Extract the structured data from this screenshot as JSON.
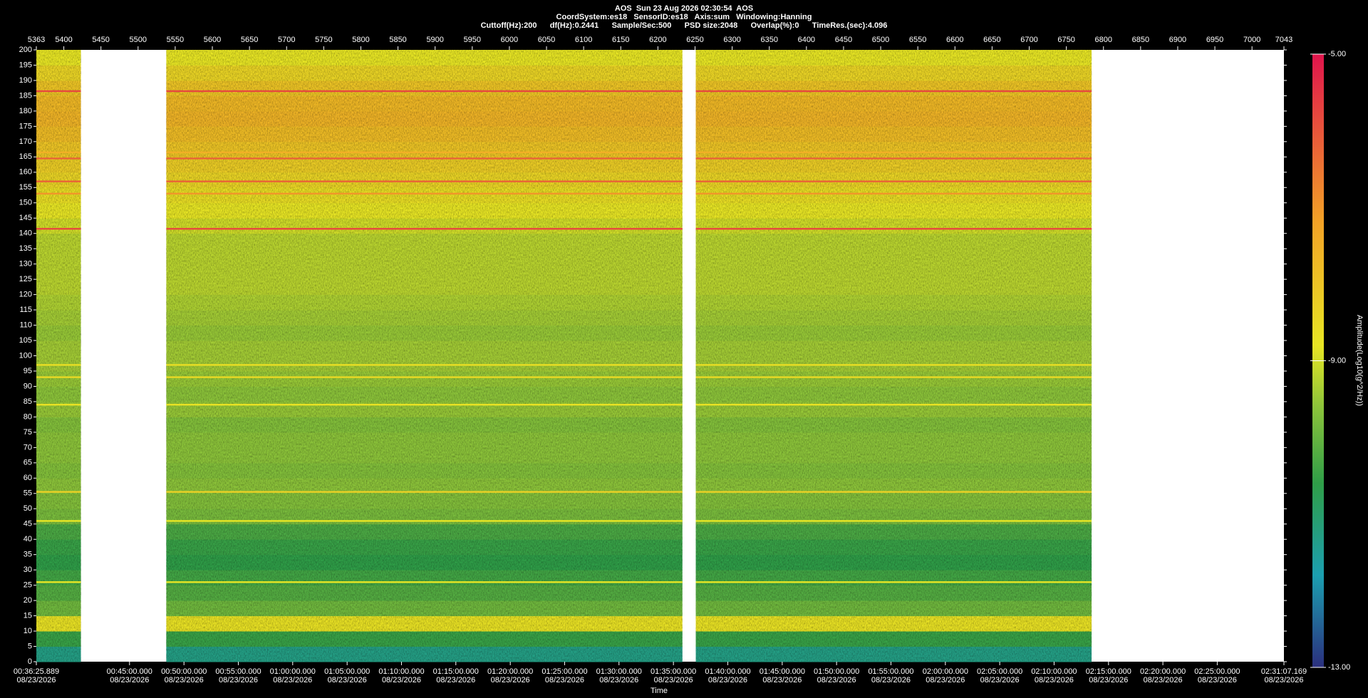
{
  "chart_data": {
    "type": "heatmap",
    "title_lines": [
      "AOS  Sun 23 Aug 2026 02:30:54  AOS",
      "CoordSystem:es18   SensorID:es18   Axis:sum   Windowing:Hanning",
      "Cuttoff(Hz):200      df(Hz):0.2441      Sample/Sec:500      PSD size:2048      Overlap(%):0      TimeRes.(sec):4.096"
    ],
    "xlabel": "Time",
    "colorbar_label": "Amplitude(Log10(g^2/Hz))",
    "xlim": [
      5363,
      7043
    ],
    "xticks": [
      5363,
      5400,
      5450,
      5500,
      5550,
      5600,
      5650,
      5700,
      5750,
      5800,
      5850,
      5900,
      5950,
      6000,
      6050,
      6100,
      6150,
      6200,
      6250,
      6300,
      6350,
      6400,
      6450,
      6500,
      6550,
      6600,
      6650,
      6700,
      6750,
      6800,
      6850,
      6900,
      6950,
      7000,
      7043
    ],
    "x2ticks": [
      {
        "value": 5363,
        "label": "00:36:25.889",
        "date": "08/23/2026"
      },
      {
        "value": 5488.5,
        "label": "00:45:00.000",
        "date": "08/23/2026"
      },
      {
        "value": 5561.8,
        "label": "00:50:00.000",
        "date": "08/23/2026"
      },
      {
        "value": 5635.0,
        "label": "00:55:00.000",
        "date": "08/23/2026"
      },
      {
        "value": 5708.2,
        "label": "01:00:00.000",
        "date": "08/23/2026"
      },
      {
        "value": 5781.5,
        "label": "01:05:00.000",
        "date": "08/23/2026"
      },
      {
        "value": 5854.7,
        "label": "01:10:00.000",
        "date": "08/23/2026"
      },
      {
        "value": 5927.9,
        "label": "01:15:00.000",
        "date": "08/23/2026"
      },
      {
        "value": 6001.2,
        "label": "01:20:00.000",
        "date": "08/23/2026"
      },
      {
        "value": 6074.4,
        "label": "01:25:00.000",
        "date": "08/23/2026"
      },
      {
        "value": 6147.6,
        "label": "01:30:00.000",
        "date": "08/23/2026"
      },
      {
        "value": 6220.9,
        "label": "01:35:00.000",
        "date": "08/23/2026"
      },
      {
        "value": 6294.1,
        "label": "01:40:00.000",
        "date": "08/23/2026"
      },
      {
        "value": 6367.4,
        "label": "01:45:00.000",
        "date": "08/23/2026"
      },
      {
        "value": 6440.6,
        "label": "01:50:00.000",
        "date": "08/23/2026"
      },
      {
        "value": 6513.8,
        "label": "01:55:00.000",
        "date": "08/23/2026"
      },
      {
        "value": 6587.1,
        "label": "02:00:00.000",
        "date": "08/23/2026"
      },
      {
        "value": 6660.3,
        "label": "02:05:00.000",
        "date": "08/23/2026"
      },
      {
        "value": 6733.5,
        "label": "02:10:00.000",
        "date": "08/23/2026"
      },
      {
        "value": 6806.8,
        "label": "02:15:00.000",
        "date": "08/23/2026"
      },
      {
        "value": 6880.0,
        "label": "02:20:00.000",
        "date": "08/23/2026"
      },
      {
        "value": 6953.2,
        "label": "02:25:00.000",
        "date": "08/23/2026"
      },
      {
        "value": 7043,
        "label": "02:31:07.169",
        "date": "08/23/2026"
      }
    ],
    "ylim": [
      0,
      200
    ],
    "yticks": [
      0,
      5,
      10,
      15,
      20,
      25,
      30,
      35,
      40,
      45,
      50,
      55,
      60,
      65,
      70,
      75,
      80,
      85,
      90,
      95,
      100,
      105,
      110,
      115,
      120,
      125,
      130,
      135,
      140,
      145,
      150,
      155,
      160,
      165,
      170,
      175,
      180,
      185,
      190,
      195,
      200
    ],
    "segments": [
      [
        5363,
        5423
      ],
      [
        5538,
        6233
      ],
      [
        6251,
        6784
      ]
    ],
    "ybins": [
      0,
      5,
      10,
      15,
      20,
      25,
      30,
      35,
      40,
      45,
      50,
      55,
      60,
      65,
      70,
      75,
      80,
      85,
      90,
      95,
      100,
      105,
      110,
      115,
      120,
      125,
      130,
      135,
      140,
      145,
      150,
      155,
      160,
      165,
      170,
      175,
      180,
      185,
      190,
      195,
      200
    ],
    "values": [
      -11.3,
      -10.5,
      -8.7,
      -9.9,
      -10.2,
      -10.4,
      -10.6,
      -10.5,
      -10.3,
      -9.8,
      -9.7,
      -9.6,
      -9.7,
      -9.6,
      -9.6,
      -9.7,
      -9.5,
      -9.6,
      -9.5,
      -9.4,
      -9.4,
      -9.5,
      -9.4,
      -9.3,
      -9.2,
      -9.2,
      -9.2,
      -9.2,
      -9.0,
      -8.8,
      -8.6,
      -8.4,
      -8.2,
      -8.0,
      -7.8,
      -7.6,
      -7.7,
      -8.0,
      -8.4,
      -8.8
    ],
    "lines": {
      "freqs": [
        186.5,
        166.5,
        164.5,
        157,
        153,
        141.5,
        97,
        93,
        84,
        55.5,
        46,
        26
      ],
      "values": [
        -5.8,
        -7.5,
        -6.2,
        -6.2,
        -7.0,
        -5.8,
        -8.6,
        -8.5,
        -8.7,
        -8.3,
        -8.8,
        -8.8
      ]
    },
    "clim": [
      -13,
      -5
    ],
    "cticks": [
      {
        "value": -5,
        "label": "-5.00"
      },
      {
        "value": -9,
        "label": "-9.00"
      },
      {
        "value": -13,
        "label": "-13.00"
      }
    ],
    "colorscale": [
      [
        -13,
        "#2b2f7e"
      ],
      [
        -11.8,
        "#1c9fb0"
      ],
      [
        -10.6,
        "#2f9e48"
      ],
      [
        -9.6,
        "#8cc43a"
      ],
      [
        -8.8,
        "#e8e624"
      ],
      [
        -7.2,
        "#f3a326"
      ],
      [
        -5,
        "#e0144c"
      ]
    ]
  }
}
